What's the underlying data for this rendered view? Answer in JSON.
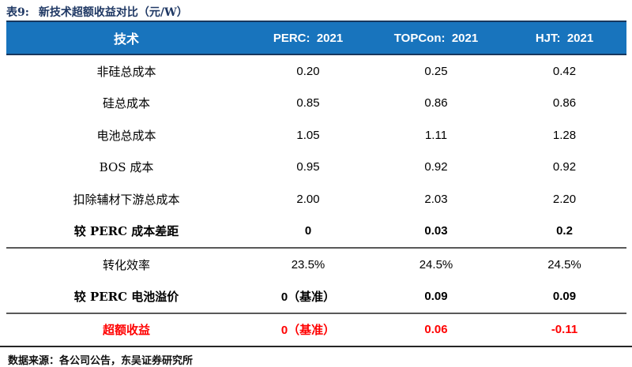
{
  "title": {
    "prefix": "表9:",
    "text": "新技术超额收益对比（元/W）"
  },
  "table": {
    "columns": [
      "技术",
      "PERC:  2021",
      "TOPCon:  2021",
      "HJT:  2021"
    ],
    "rows": [
      {
        "label": "非硅总成本",
        "values": [
          "0.20",
          "0.25",
          "0.42"
        ],
        "emphasis": "normal",
        "divider_before": false
      },
      {
        "label": "硅总成本",
        "values": [
          "0.85",
          "0.86",
          "0.86"
        ],
        "emphasis": "normal",
        "divider_before": false
      },
      {
        "label": "电池总成本",
        "values": [
          "1.05",
          "1.11",
          "1.28"
        ],
        "emphasis": "normal",
        "divider_before": false
      },
      {
        "label": "BOS 成本",
        "values": [
          "0.95",
          "0.92",
          "0.92"
        ],
        "emphasis": "normal",
        "divider_before": false
      },
      {
        "label": "扣除辅材下游总成本",
        "values": [
          "2.00",
          "2.03",
          "2.20"
        ],
        "emphasis": "normal",
        "divider_before": false
      },
      {
        "label": "较 PERC 成本差距",
        "values": [
          "0",
          "0.03",
          "0.2"
        ],
        "emphasis": "bold",
        "divider_before": false
      },
      {
        "label": "转化效率",
        "values": [
          "23.5%",
          "24.5%",
          "24.5%"
        ],
        "emphasis": "normal",
        "divider_before": true
      },
      {
        "label": "较 PERC 电池溢价",
        "values": [
          "0（基准）",
          "0.09",
          "0.09"
        ],
        "emphasis": "bold",
        "divider_before": false
      },
      {
        "label": "超额收益",
        "values": [
          "0（基准）",
          "0.06",
          "-0.11"
        ],
        "emphasis": "red-bold",
        "divider_before": true
      }
    ]
  },
  "footer": {
    "text": "数据来源：各公司公告，东吴证券研究所"
  },
  "colors": {
    "title_navy": "#1F3864",
    "header_blue": "#1874BD",
    "header_border_navy": "#17375E",
    "highlight_red": "#FF0000",
    "divider_gray": "#595959",
    "bottom_rule": "#262626"
  }
}
